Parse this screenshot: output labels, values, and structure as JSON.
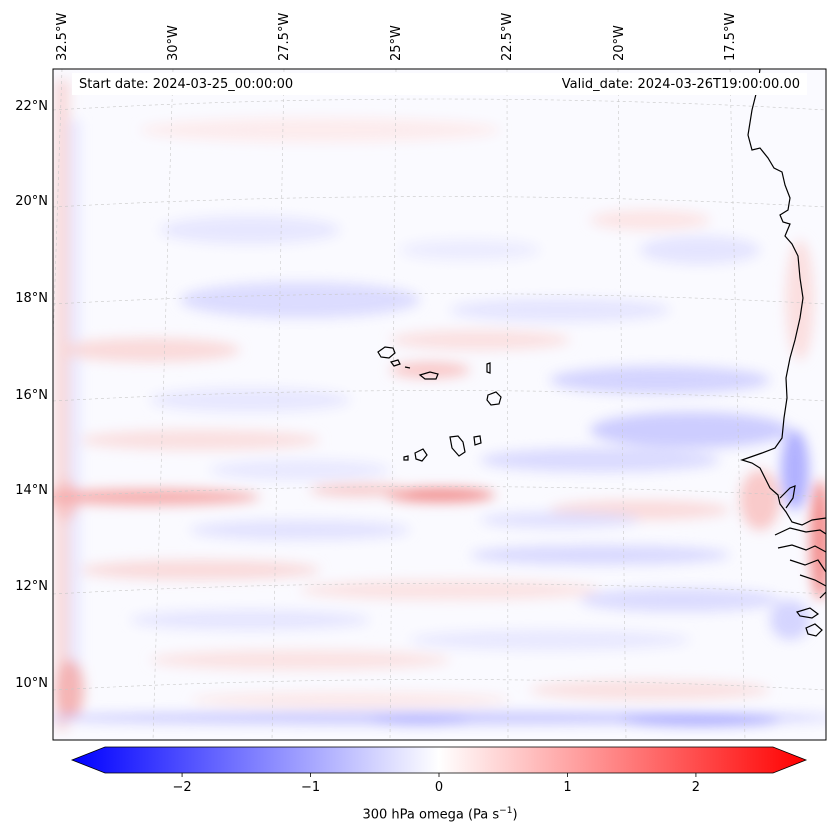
{
  "map": {
    "start_date": "Start date: 2024-03-25_00:00:00",
    "valid_date": "Valid_date: 2024-03-26T19:00:00.00",
    "lon_ticks": [
      "32.5°W",
      "30°W",
      "27.5°W",
      "25°W",
      "22.5°W",
      "20°W",
      "17.5°W"
    ],
    "lat_ticks": [
      "22°N",
      "20°N",
      "18°N",
      "16°N",
      "14°N",
      "12°N",
      "10°N"
    ],
    "lon_values": [
      -32.5,
      -30,
      -27.5,
      -25,
      -22.5,
      -20,
      -17.5
    ],
    "lat_values": [
      22,
      20,
      18,
      16,
      14,
      12,
      10
    ],
    "variable": "300 hPa omega"
  },
  "colorbar": {
    "ticks": [
      "−2",
      "−1",
      "0",
      "1",
      "2"
    ],
    "tick_values": [
      -2,
      -1,
      0,
      1,
      2
    ],
    "range": [
      -2.6,
      2.6
    ],
    "label_main": "300 hPa omega (Pa s",
    "label_sup": "−1",
    "label_end": ")",
    "colors": {
      "low": "#0000ff",
      "mid": "#ffffff",
      "high": "#ff0000"
    }
  }
}
